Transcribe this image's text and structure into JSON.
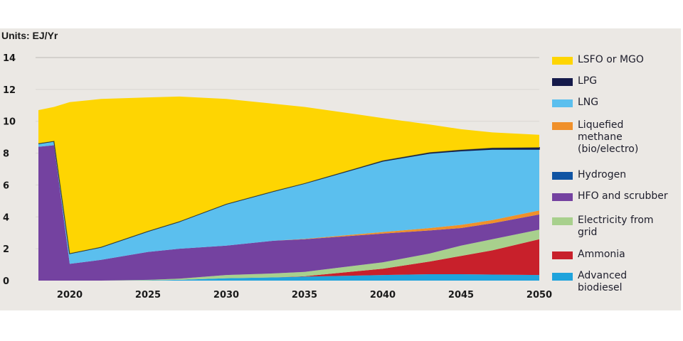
{
  "chart_data": {
    "type": "area",
    "stacked": true,
    "title": "",
    "units_label": "Units: EJ/Yr",
    "xlabel": "",
    "ylabel": "EJ/Yr",
    "xlim": [
      2018,
      2050
    ],
    "ylim": [
      0,
      14
    ],
    "grid": true,
    "legend_position": "right",
    "x": [
      2018,
      2019,
      2020,
      2022,
      2025,
      2027,
      2030,
      2033,
      2035,
      2040,
      2043,
      2045,
      2047,
      2050
    ],
    "x_ticks": [
      "2020",
      "2025",
      "2030",
      "2035",
      "2040",
      "2045",
      "2050"
    ],
    "x_tick_values": [
      2020,
      2025,
      2030,
      2035,
      2040,
      2045,
      2050
    ],
    "y_ticks": [
      "0",
      "2",
      "4",
      "6",
      "8",
      "10",
      "12",
      "14"
    ],
    "y_tick_values": [
      0,
      2,
      4,
      6,
      8,
      10,
      12,
      14
    ],
    "series": [
      {
        "name": "Advanced biodiesel",
        "color": "#1fa3dc",
        "values": [
          0,
          0,
          0,
          0,
          0.02,
          0.05,
          0.15,
          0.2,
          0.25,
          0.35,
          0.4,
          0.4,
          0.38,
          0.35
        ]
      },
      {
        "name": "Ammonia",
        "color": "#c8202b",
        "values": [
          0,
          0,
          0,
          0,
          0,
          0,
          0,
          0,
          0.02,
          0.4,
          0.8,
          1.15,
          1.52,
          2.25
        ]
      },
      {
        "name": "Electricity from grid",
        "color": "#a8d08d",
        "values": [
          0,
          0,
          0,
          0,
          0.03,
          0.07,
          0.2,
          0.25,
          0.28,
          0.4,
          0.5,
          0.65,
          0.7,
          0.6
        ]
      },
      {
        "name": "HFO and scrubber",
        "color": "#7442a0",
        "values": [
          8.4,
          8.5,
          1.05,
          1.3,
          1.75,
          1.88,
          1.85,
          2.05,
          2.05,
          1.8,
          1.45,
          1.1,
          1.0,
          0.95
        ]
      },
      {
        "name": "Hydrogen",
        "color": "#1054a3",
        "values": [
          0,
          0,
          0,
          0,
          0,
          0,
          0,
          0,
          0,
          0,
          0,
          0,
          0,
          0
        ]
      },
      {
        "name": "Liquefied methane (bio/electro)",
        "color": "#f0902a",
        "values": [
          0,
          0,
          0,
          0,
          0,
          0,
          0,
          0,
          0.02,
          0.1,
          0.15,
          0.2,
          0.2,
          0.25
        ]
      },
      {
        "name": "LNG",
        "color": "#5bbfee",
        "values": [
          0.2,
          0.25,
          0.65,
          0.8,
          1.3,
          1.7,
          2.6,
          3.1,
          3.48,
          4.45,
          4.7,
          4.65,
          4.45,
          3.85
        ]
      },
      {
        "name": "LPG",
        "color": "#151a4a",
        "values": [
          0,
          0,
          0,
          0,
          0,
          0,
          0,
          0,
          0,
          0.02,
          0.04,
          0.05,
          0.07,
          0.1
        ]
      },
      {
        "name": "LSFO or MGO",
        "color": "#fed502",
        "values": [
          2.1,
          2.15,
          9.5,
          9.3,
          8.4,
          7.85,
          6.6,
          5.5,
          4.8,
          2.68,
          1.76,
          1.3,
          0.98,
          0.8
        ]
      }
    ],
    "legend": [
      {
        "label": "LSFO or MGO",
        "color": "#fed502"
      },
      {
        "label": "LPG",
        "color": "#151a4a"
      },
      {
        "label": "LNG",
        "color": "#5bbfee"
      },
      {
        "label": "Liquefied methane (bio/electro)",
        "lines": [
          "Liquefied",
          "methane",
          "(bio/electro)"
        ],
        "color": "#f0902a"
      },
      {
        "label": "Hydrogen",
        "color": "#1054a3"
      },
      {
        "label": "HFO and scrubber",
        "color": "#7442a0"
      },
      {
        "label": "Electricity from grid",
        "lines": [
          "Electricity from",
          "grid"
        ],
        "color": "#a8d08d"
      },
      {
        "label": "Ammonia",
        "color": "#c8202b"
      },
      {
        "label": "Advanced biodiesel",
        "lines": [
          "Advanced",
          "biodiesel"
        ],
        "color": "#1fa3dc"
      }
    ]
  }
}
